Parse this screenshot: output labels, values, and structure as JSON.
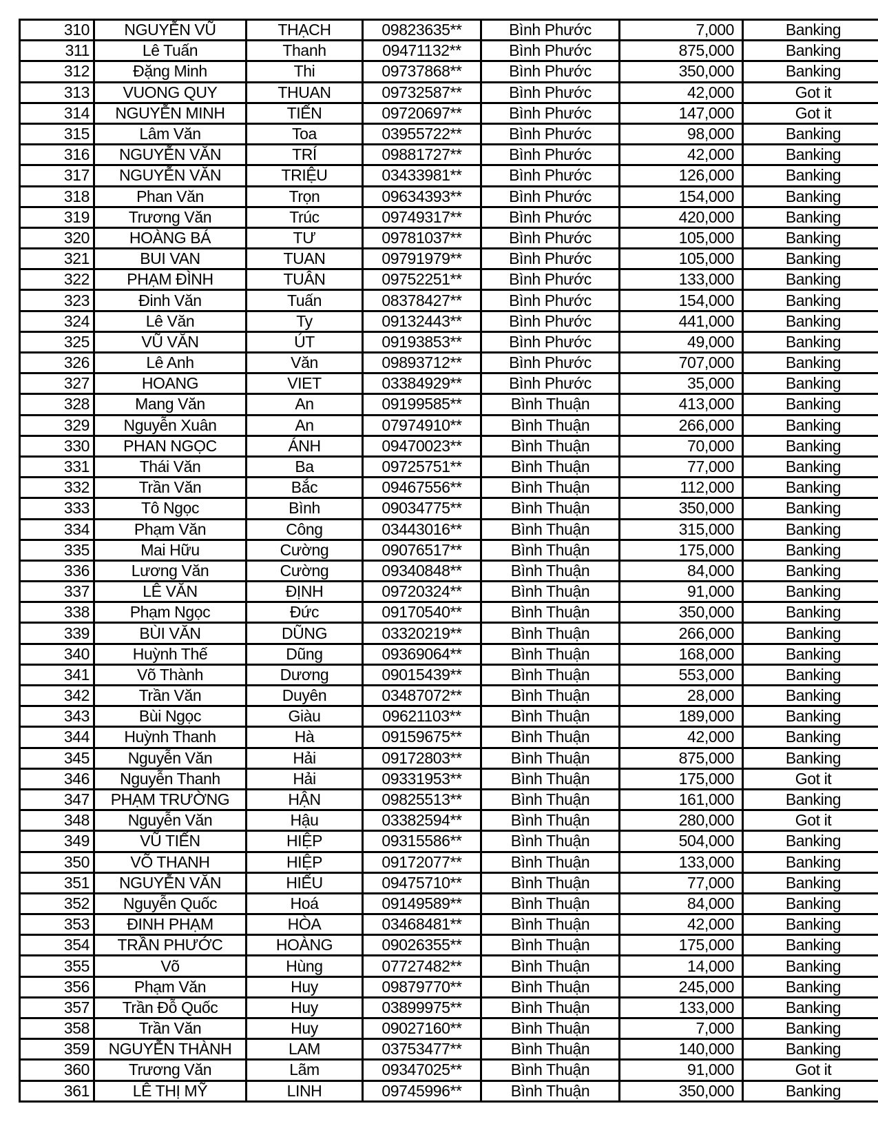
{
  "colors": {
    "background": "#ffffff",
    "border": "#000000",
    "text": "#000000"
  },
  "table": {
    "columns": [
      {
        "key": "id",
        "align": "right"
      },
      {
        "key": "first-middle-name",
        "align": "center"
      },
      {
        "key": "last-name",
        "align": "center"
      },
      {
        "key": "phone-masked",
        "align": "center"
      },
      {
        "key": "province",
        "align": "center"
      },
      {
        "key": "amount",
        "align": "right"
      },
      {
        "key": "status",
        "align": "center"
      }
    ],
    "rows": [
      [
        "310",
        "NGUYỄN VŨ",
        "THẠCH",
        "09823635**",
        "Bình Phước",
        "7,000",
        "Banking"
      ],
      [
        "311",
        "Lê Tuấn",
        "Thanh",
        "09471132**",
        "Bình Phước",
        "875,000",
        "Banking"
      ],
      [
        "312",
        "Đặng Minh",
        "Thi",
        "09737868**",
        "Bình Phước",
        "350,000",
        "Banking"
      ],
      [
        "313",
        "VUONG QUY",
        "THUAN",
        "09732587**",
        "Bình Phước",
        "42,000",
        "Got it"
      ],
      [
        "314",
        "NGUYỄN MINH",
        "TIẾN",
        "09720697**",
        "Bình Phước",
        "147,000",
        "Got it"
      ],
      [
        "315",
        "Lâm Văn",
        "Toa",
        "03955722**",
        "Bình Phước",
        "98,000",
        "Banking"
      ],
      [
        "316",
        "NGUYỄN VĂN",
        "TRÍ",
        "09881727**",
        "Bình Phước",
        "42,000",
        "Banking"
      ],
      [
        "317",
        "NGUYỄN VĂN",
        "TRIỆU",
        "03433981**",
        "Bình Phước",
        "126,000",
        "Banking"
      ],
      [
        "318",
        "Phan Văn",
        "Trọn",
        "09634393**",
        "Bình Phước",
        "154,000",
        "Banking"
      ],
      [
        "319",
        "Trương Văn",
        "Trúc",
        "09749317**",
        "Bình Phước",
        "420,000",
        "Banking"
      ],
      [
        "320",
        "HOÀNG BÁ",
        "TƯ",
        "09781037**",
        "Bình Phước",
        "105,000",
        "Banking"
      ],
      [
        "321",
        "BUI VAN",
        "TUAN",
        "09791979**",
        "Bình Phước",
        "105,000",
        "Banking"
      ],
      [
        "322",
        "PHẠM ĐÌNH",
        "TUÂN",
        "09752251**",
        "Bình Phước",
        "133,000",
        "Banking"
      ],
      [
        "323",
        "Đinh Văn",
        "Tuấn",
        "08378427**",
        "Bình Phước",
        "154,000",
        "Banking"
      ],
      [
        "324",
        "Lê Văn",
        "Ty",
        "09132443**",
        "Bình Phước",
        "441,000",
        "Banking"
      ],
      [
        "325",
        "VŨ VĂN",
        "ÚT",
        "09193853**",
        "Bình Phước",
        "49,000",
        "Banking"
      ],
      [
        "326",
        "Lê Anh",
        "Văn",
        "09893712**",
        "Bình Phước",
        "707,000",
        "Banking"
      ],
      [
        "327",
        "HOANG",
        "VIET",
        "03384929**",
        "Bình Phước",
        "35,000",
        "Banking"
      ],
      [
        "328",
        "Mang Văn",
        "An",
        "09199585**",
        "Bình Thuận",
        "413,000",
        "Banking"
      ],
      [
        "329",
        "Nguyễn Xuân",
        "An",
        "07974910**",
        "Bình Thuận",
        "266,000",
        "Banking"
      ],
      [
        "330",
        "PHAN NGỌC",
        "ÁNH",
        "09470023**",
        "Bình Thuận",
        "70,000",
        "Banking"
      ],
      [
        "331",
        "Thái Văn",
        "Ba",
        "09725751**",
        "Bình Thuận",
        "77,000",
        "Banking"
      ],
      [
        "332",
        "Trần Văn",
        "Bắc",
        "09467556**",
        "Bình Thuận",
        "112,000",
        "Banking"
      ],
      [
        "333",
        "Tô Ngọc",
        "Bình",
        "09034775**",
        "Bình Thuận",
        "350,000",
        "Banking"
      ],
      [
        "334",
        "Phạm Văn",
        "Công",
        "03443016**",
        "Bình Thuận",
        "315,000",
        "Banking"
      ],
      [
        "335",
        "Mai Hữu",
        "Cường",
        "09076517**",
        "Bình Thuận",
        "175,000",
        "Banking"
      ],
      [
        "336",
        "Lương Văn",
        "Cường",
        "09340848**",
        "Bình Thuận",
        "84,000",
        "Banking"
      ],
      [
        "337",
        "LÊ VĂN",
        "ĐỊNH",
        "09720324**",
        "Bình Thuận",
        "91,000",
        "Banking"
      ],
      [
        "338",
        "Phạm Ngọc",
        "Đức",
        "09170540**",
        "Bình Thuận",
        "350,000",
        "Banking"
      ],
      [
        "339",
        "BÙI VĂN",
        "DŨNG",
        "03320219**",
        "Bình Thuận",
        "266,000",
        "Banking"
      ],
      [
        "340",
        "Huỳnh Thế",
        "Dũng",
        "09369064**",
        "Bình Thuận",
        "168,000",
        "Banking"
      ],
      [
        "341",
        "Võ Thành",
        "Dương",
        "09015439**",
        "Bình Thuận",
        "553,000",
        "Banking"
      ],
      [
        "342",
        "Trần Văn",
        "Duyên",
        "03487072**",
        "Bình Thuận",
        "28,000",
        "Banking"
      ],
      [
        "343",
        "Bùi Ngọc",
        "Giàu",
        "09621103**",
        "Bình Thuận",
        "189,000",
        "Banking"
      ],
      [
        "344",
        "Huỳnh Thanh",
        "Hà",
        "09159675**",
        "Bình Thuận",
        "42,000",
        "Banking"
      ],
      [
        "345",
        "Nguyễn Văn",
        "Hải",
        "09172803**",
        "Bình Thuận",
        "875,000",
        "Banking"
      ],
      [
        "346",
        "Nguyễn Thanh",
        "Hải",
        "09331953**",
        "Bình Thuận",
        "175,000",
        "Got it"
      ],
      [
        "347",
        "PHẠM TRƯỜNG",
        "HẬN",
        "09825513**",
        "Bình Thuận",
        "161,000",
        "Banking"
      ],
      [
        "348",
        "Nguyễn Văn",
        "Hậu",
        "03382594**",
        "Bình Thuận",
        "280,000",
        "Got it"
      ],
      [
        "349",
        "VŨ TIẾN",
        "HIỆP",
        "09315586**",
        "Bình Thuận",
        "504,000",
        "Banking"
      ],
      [
        "350",
        "VÕ THANH",
        "HIỆP",
        "09172077**",
        "Bình Thuận",
        "133,000",
        "Banking"
      ],
      [
        "351",
        "NGUYỄN VĂN",
        "HIẾU",
        "09475710**",
        "Bình Thuận",
        "77,000",
        "Banking"
      ],
      [
        "352",
        "Nguyễn Quốc",
        "Hoá",
        "09149589**",
        "Bình Thuận",
        "84,000",
        "Banking"
      ],
      [
        "353",
        "ĐINH PHẠM",
        "HÒA",
        "03468481**",
        "Bình Thuận",
        "42,000",
        "Banking"
      ],
      [
        "354",
        "TRẦN PHƯỚC",
        "HOÀNG",
        "09026355**",
        "Bình Thuận",
        "175,000",
        "Banking"
      ],
      [
        "355",
        "Võ",
        "Hùng",
        "07727482**",
        "Bình Thuận",
        "14,000",
        "Banking"
      ],
      [
        "356",
        "Phạm Văn",
        "Huy",
        "09879770**",
        "Bình Thuận",
        "245,000",
        "Banking"
      ],
      [
        "357",
        "Trần Đỗ Quốc",
        "Huy",
        "03899975**",
        "Bình Thuận",
        "133,000",
        "Banking"
      ],
      [
        "358",
        "Trần Văn",
        "Huy",
        "09027160**",
        "Bình Thuận",
        "7,000",
        "Banking"
      ],
      [
        "359",
        "NGUYỄN THÀNH",
        "LAM",
        "03753477**",
        "Bình Thuận",
        "140,000",
        "Banking"
      ],
      [
        "360",
        "Trương Văn",
        "Lãm",
        "09347025**",
        "Bình Thuận",
        "91,000",
        "Got it"
      ],
      [
        "361",
        "LÊ THỊ MỸ",
        "LINH",
        "09745996**",
        "Bình Thuận",
        "350,000",
        "Banking"
      ]
    ]
  }
}
